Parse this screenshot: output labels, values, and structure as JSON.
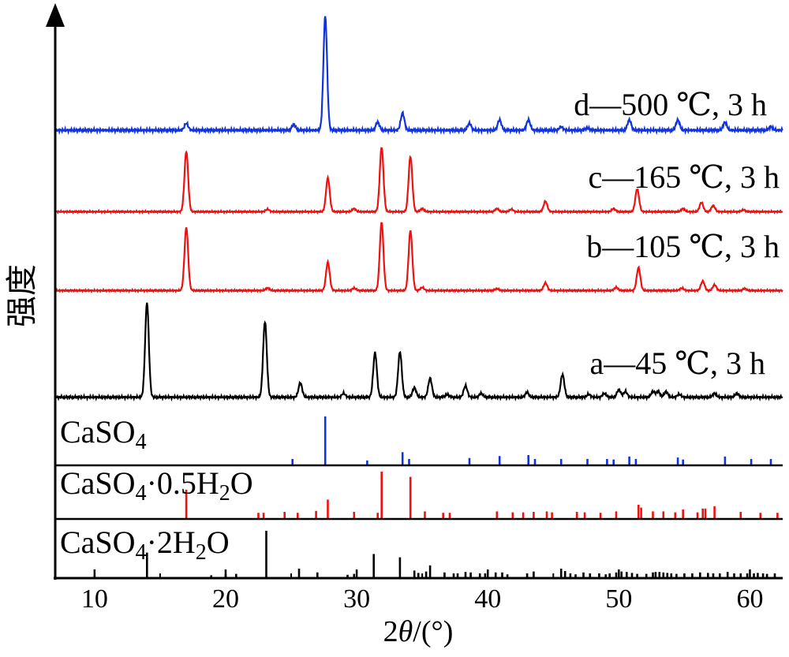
{
  "chart_data": {
    "type": "line",
    "ylabel": "强度",
    "xlabel": "2θ/(°)",
    "xlim": [
      7,
      62.5
    ],
    "x_ticks": [
      10,
      20,
      30,
      40,
      50,
      60
    ],
    "grid": false,
    "series": [
      {
        "name": "a—45 ℃, 3 h",
        "color": "#000000",
        "baseline": 0.02,
        "peaks": [
          [
            14.0,
            1.0
          ],
          [
            23.0,
            0.8
          ],
          [
            25.7,
            0.15
          ],
          [
            29.0,
            0.04
          ],
          [
            31.4,
            0.47
          ],
          [
            33.3,
            0.48
          ],
          [
            34.4,
            0.1
          ],
          [
            35.6,
            0.2
          ],
          [
            36.9,
            0.03
          ],
          [
            38.3,
            0.12
          ],
          [
            39.5,
            0.04
          ],
          [
            43.0,
            0.05
          ],
          [
            45.7,
            0.24
          ],
          [
            47.7,
            0.03
          ],
          [
            48.9,
            0.04
          ],
          [
            50.0,
            0.08
          ],
          [
            50.5,
            0.06
          ],
          [
            52.6,
            0.06
          ],
          [
            53.0,
            0.06
          ],
          [
            53.6,
            0.06
          ],
          [
            54.6,
            0.03
          ],
          [
            57.3,
            0.04
          ],
          [
            59.0,
            0.04
          ]
        ]
      },
      {
        "name": "b—105 ℃, 3 h",
        "color": "#ee1111",
        "baseline": 0.02,
        "peaks": [
          [
            17.0,
            1.0
          ],
          [
            23.2,
            0.04
          ],
          [
            27.8,
            0.45
          ],
          [
            29.8,
            0.04
          ],
          [
            31.9,
            1.08
          ],
          [
            34.1,
            0.95
          ],
          [
            35.0,
            0.05
          ],
          [
            40.7,
            0.03
          ],
          [
            44.4,
            0.12
          ],
          [
            49.8,
            0.05
          ],
          [
            51.5,
            0.36
          ],
          [
            54.8,
            0.04
          ],
          [
            56.4,
            0.15
          ],
          [
            57.3,
            0.09
          ],
          [
            59.6,
            0.03
          ]
        ]
      },
      {
        "name": "c—165 ℃, 3 h",
        "color": "#ee1111",
        "baseline": 0.02,
        "peaks": [
          [
            17.0,
            0.98
          ],
          [
            23.2,
            0.04
          ],
          [
            27.8,
            0.55
          ],
          [
            29.8,
            0.05
          ],
          [
            31.9,
            1.05
          ],
          [
            34.1,
            0.9
          ],
          [
            35.0,
            0.05
          ],
          [
            40.7,
            0.05
          ],
          [
            41.8,
            0.04
          ],
          [
            44.4,
            0.17
          ],
          [
            49.6,
            0.05
          ],
          [
            51.4,
            0.37
          ],
          [
            54.9,
            0.05
          ],
          [
            56.3,
            0.15
          ],
          [
            57.2,
            0.1
          ],
          [
            59.5,
            0.03
          ]
        ]
      },
      {
        "name": "d—500 ℃, 3 h",
        "color": "#1133dd",
        "baseline": 0.02,
        "peaks": [
          [
            17.0,
            0.06
          ],
          [
            25.2,
            0.05
          ],
          [
            27.6,
            1.0
          ],
          [
            31.6,
            0.07
          ],
          [
            33.5,
            0.15
          ],
          [
            38.6,
            0.06
          ],
          [
            40.9,
            0.09
          ],
          [
            43.1,
            0.09
          ],
          [
            45.6,
            0.03
          ],
          [
            47.6,
            0.02
          ],
          [
            50.8,
            0.09
          ],
          [
            54.5,
            0.09
          ],
          [
            58.1,
            0.07
          ],
          [
            61.6,
            0.03
          ]
        ]
      }
    ],
    "references": [
      {
        "name": "CaSO4",
        "color": "#1133dd",
        "lines": [
          [
            25.1,
            0.13
          ],
          [
            27.6,
            1.0
          ],
          [
            30.8,
            0.1
          ],
          [
            33.5,
            0.27
          ],
          [
            34.0,
            0.13
          ],
          [
            38.6,
            0.15
          ],
          [
            40.9,
            0.19
          ],
          [
            43.1,
            0.21
          ],
          [
            43.6,
            0.13
          ],
          [
            45.6,
            0.13
          ],
          [
            47.6,
            0.13
          ],
          [
            49.1,
            0.13
          ],
          [
            49.6,
            0.12
          ],
          [
            50.8,
            0.18
          ],
          [
            51.3,
            0.13
          ],
          [
            54.5,
            0.16
          ],
          [
            54.9,
            0.12
          ],
          [
            58.1,
            0.18
          ],
          [
            60.1,
            0.13
          ],
          [
            61.6,
            0.13
          ]
        ]
      },
      {
        "name": "CaSO4·0.5H2O",
        "color": "#ee1111",
        "lines": [
          [
            17.0,
            0.62
          ],
          [
            22.5,
            0.13
          ],
          [
            22.9,
            0.13
          ],
          [
            24.5,
            0.15
          ],
          [
            25.5,
            0.13
          ],
          [
            26.9,
            0.17
          ],
          [
            27.8,
            0.41
          ],
          [
            29.8,
            0.15
          ],
          [
            31.6,
            0.13
          ],
          [
            31.9,
            1.0
          ],
          [
            34.1,
            0.89
          ],
          [
            35.2,
            0.16
          ],
          [
            36.6,
            0.13
          ],
          [
            37.1,
            0.13
          ],
          [
            40.7,
            0.16
          ],
          [
            41.9,
            0.14
          ],
          [
            42.7,
            0.14
          ],
          [
            43.5,
            0.15
          ],
          [
            44.5,
            0.16
          ],
          [
            44.9,
            0.14
          ],
          [
            46.8,
            0.15
          ],
          [
            47.4,
            0.14
          ],
          [
            48.6,
            0.13
          ],
          [
            49.8,
            0.16
          ],
          [
            51.5,
            0.3
          ],
          [
            51.7,
            0.24
          ],
          [
            52.6,
            0.16
          ],
          [
            53.4,
            0.16
          ],
          [
            54.3,
            0.14
          ],
          [
            54.9,
            0.2
          ],
          [
            56.0,
            0.14
          ],
          [
            56.4,
            0.22
          ],
          [
            56.6,
            0.22
          ],
          [
            57.3,
            0.27
          ],
          [
            59.3,
            0.15
          ],
          [
            60.8,
            0.13
          ],
          [
            62.1,
            0.13
          ]
        ]
      },
      {
        "name": "CaSO4·2H2O",
        "color": "#000000",
        "lines": [
          [
            10.0,
            0.07
          ],
          [
            14.0,
            0.54
          ],
          [
            18.9,
            0.06
          ],
          [
            20.0,
            0.08
          ],
          [
            20.8,
            0.09
          ],
          [
            23.1,
            1.0
          ],
          [
            25.6,
            0.2
          ],
          [
            27.0,
            0.12
          ],
          [
            29.3,
            0.07
          ],
          [
            29.8,
            0.09
          ],
          [
            31.3,
            0.51
          ],
          [
            33.3,
            0.44
          ],
          [
            34.4,
            0.16
          ],
          [
            34.7,
            0.11
          ],
          [
            35.3,
            0.14
          ],
          [
            35.6,
            0.27
          ],
          [
            36.7,
            0.12
          ],
          [
            37.4,
            0.1
          ],
          [
            37.7,
            0.1
          ],
          [
            38.3,
            0.13
          ],
          [
            38.7,
            0.12
          ],
          [
            39.4,
            0.1
          ],
          [
            39.8,
            0.1
          ],
          [
            40.6,
            0.12
          ],
          [
            41.1,
            0.12
          ],
          [
            41.5,
            0.08
          ],
          [
            43.0,
            0.1
          ],
          [
            43.5,
            0.14
          ],
          [
            45.6,
            0.2
          ],
          [
            45.9,
            0.15
          ],
          [
            46.3,
            0.1
          ],
          [
            46.7,
            0.08
          ],
          [
            47.3,
            0.12
          ],
          [
            47.8,
            0.1
          ],
          [
            48.5,
            0.1
          ],
          [
            49.0,
            0.08
          ],
          [
            49.3,
            0.1
          ],
          [
            49.8,
            0.12
          ],
          [
            50.2,
            0.14
          ],
          [
            50.6,
            0.13
          ],
          [
            51.0,
            0.11
          ],
          [
            51.4,
            0.09
          ],
          [
            52.1,
            0.09
          ],
          [
            52.6,
            0.12
          ],
          [
            52.8,
            0.13
          ],
          [
            53.1,
            0.13
          ],
          [
            53.4,
            0.12
          ],
          [
            53.7,
            0.11
          ],
          [
            54.0,
            0.1
          ],
          [
            54.4,
            0.09
          ],
          [
            55.0,
            0.1
          ],
          [
            55.6,
            0.1
          ],
          [
            56.2,
            0.12
          ],
          [
            56.8,
            0.11
          ],
          [
            57.2,
            0.1
          ],
          [
            57.7,
            0.1
          ],
          [
            58.3,
            0.13
          ],
          [
            58.8,
            0.1
          ],
          [
            59.3,
            0.1
          ],
          [
            59.8,
            0.1
          ],
          [
            60.3,
            0.1
          ],
          [
            60.6,
            0.11
          ],
          [
            61.0,
            0.1
          ],
          [
            61.3,
            0.09
          ],
          [
            61.9,
            0.1
          ]
        ]
      }
    ]
  }
}
